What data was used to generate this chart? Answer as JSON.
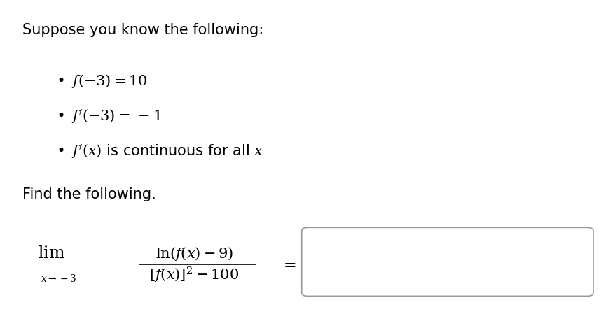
{
  "background_color": "#ffffff",
  "title_text": "Suppose you know the following:",
  "bullet1": "$f(-3) = 10$",
  "bullet2": "$f\\'(-3) =\\, -1$",
  "bullet3": "$f\\'(x)$ is continuous for all $x$",
  "find_text": "Find the following.",
  "lim_label": "$\\lim_{x \\to -3}$",
  "numerator": "$\\ln(f(x) - 9)$",
  "denominator": "$[f(x)]^2 - 100$",
  "equals": "$=$",
  "figsize": [
    8.79,
    4.59
  ],
  "dpi": 100
}
